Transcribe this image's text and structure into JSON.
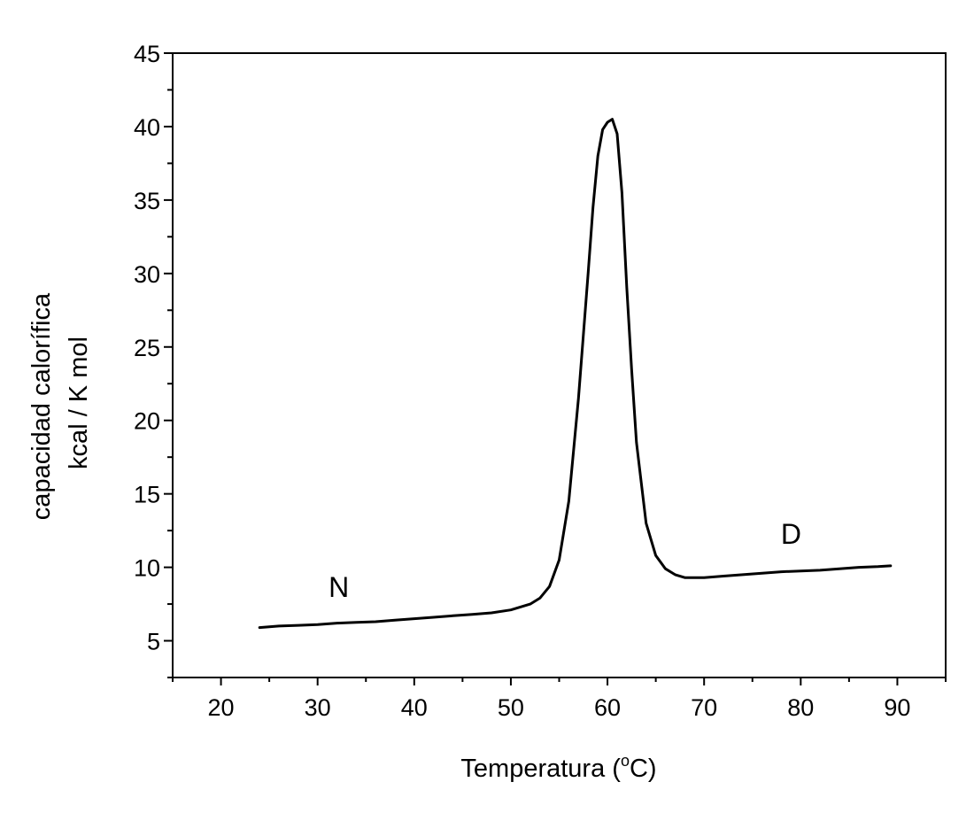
{
  "chart_data": {
    "type": "line",
    "title": "",
    "xlabel": "Temperatura (",
    "xlabel_sup": "o",
    "xlabel_unit": "C)",
    "ylabel_line1": "capacidad calorífica",
    "ylabel_line2": "kcal / K mol",
    "xlim": [
      15,
      95
    ],
    "ylim": [
      2.5,
      45
    ],
    "xticks": [
      20,
      30,
      40,
      50,
      60,
      70,
      80,
      90
    ],
    "yticks": [
      5,
      10,
      15,
      20,
      25,
      30,
      35,
      40,
      45
    ],
    "grid": false,
    "legend": "none",
    "line_color": "#000000",
    "annotations": [
      {
        "text": "N",
        "x": 32.2,
        "y": 8.0
      },
      {
        "text": "D",
        "x": 79.0,
        "y": 11.6
      }
    ],
    "series": [
      {
        "x": [
          24,
          26,
          28,
          30,
          32,
          34,
          36,
          38,
          40,
          42,
          44,
          46,
          48,
          50,
          52,
          53,
          54,
          55,
          56,
          57,
          58,
          58.5,
          59,
          59.5,
          60,
          60.5,
          61,
          61.5,
          62,
          62.5,
          63,
          64,
          65,
          66,
          67,
          68,
          70,
          72,
          74,
          76,
          78,
          80,
          82,
          84,
          86,
          88,
          89.3
        ],
        "y": [
          5.9,
          6.0,
          6.05,
          6.1,
          6.2,
          6.25,
          6.3,
          6.4,
          6.5,
          6.6,
          6.7,
          6.8,
          6.9,
          7.1,
          7.5,
          7.9,
          8.7,
          10.5,
          14.5,
          21.5,
          30.0,
          34.5,
          38.0,
          39.8,
          40.3,
          40.5,
          39.5,
          35.5,
          29.0,
          23.5,
          18.5,
          13.0,
          10.8,
          9.9,
          9.5,
          9.3,
          9.3,
          9.4,
          9.5,
          9.6,
          9.7,
          9.75,
          9.8,
          9.9,
          10.0,
          10.05,
          10.1
        ]
      }
    ]
  }
}
